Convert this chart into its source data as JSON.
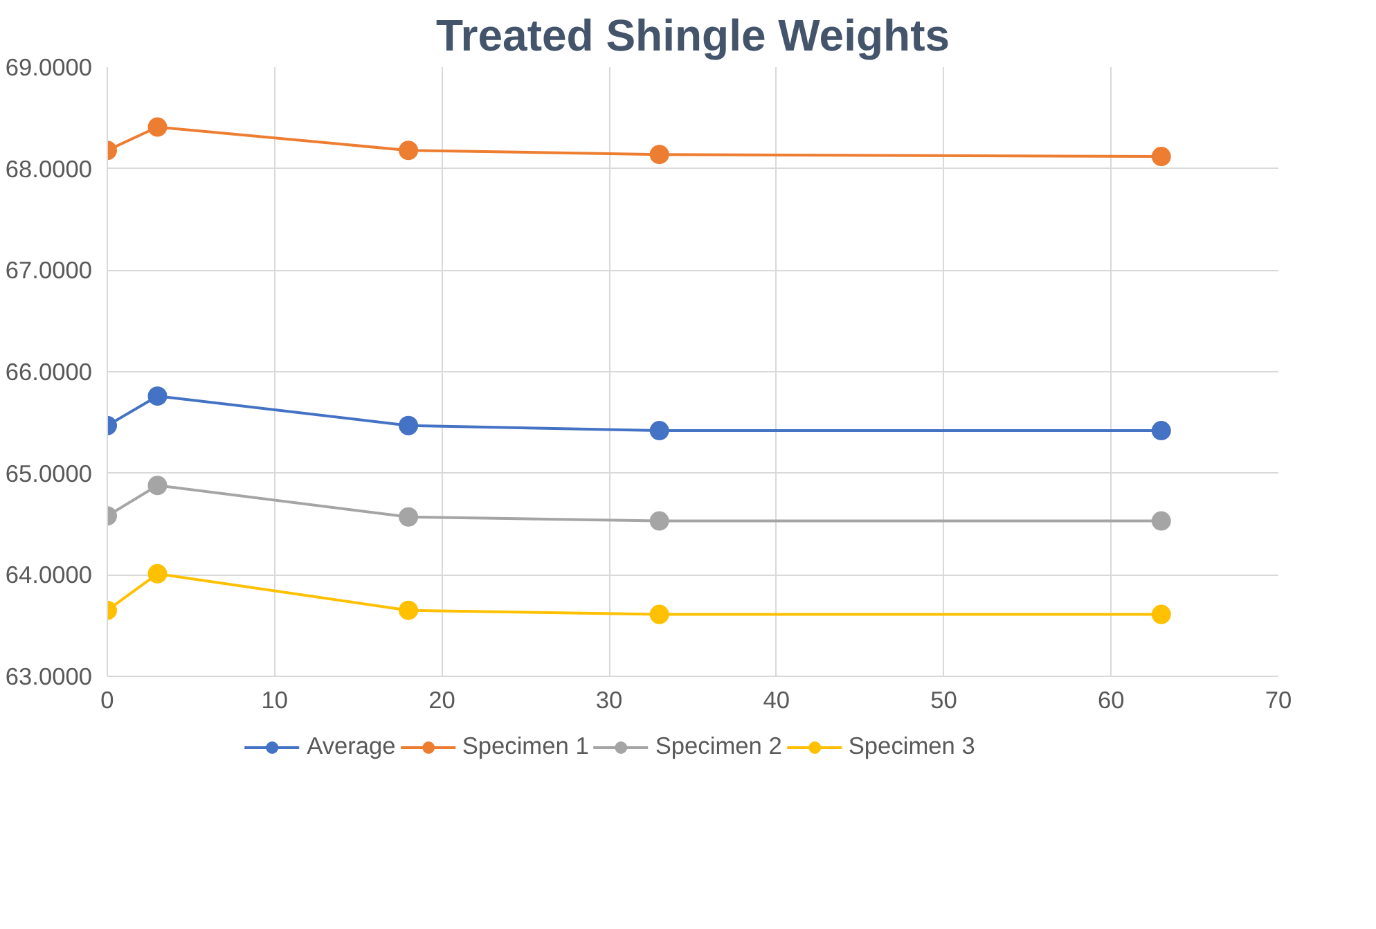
{
  "chart_data": {
    "type": "line",
    "title": "Treated Shingle Weights",
    "x": [
      0,
      3,
      18,
      33,
      63
    ],
    "series": [
      {
        "name": "Average",
        "color": "#4472c4",
        "values": [
          65.47,
          65.76,
          65.47,
          65.42,
          65.42
        ]
      },
      {
        "name": "Specimen 1",
        "color": "#ed7d31",
        "values": [
          68.18,
          68.41,
          68.18,
          68.14,
          68.12
        ]
      },
      {
        "name": "Specimen 2",
        "color": "#a5a5a5",
        "values": [
          64.58,
          64.88,
          64.57,
          64.53,
          64.53
        ]
      },
      {
        "name": "Specimen 3",
        "color": "#ffc000",
        "values": [
          63.65,
          64.01,
          63.65,
          63.61,
          63.61
        ]
      }
    ],
    "xlim": [
      0,
      70
    ],
    "xticks": [
      0,
      10,
      20,
      30,
      40,
      50,
      60,
      70
    ],
    "ylim": [
      63,
      69
    ],
    "yticks": [
      {
        "value": 63,
        "label": "63.0000"
      },
      {
        "value": 64,
        "label": "64.0000"
      },
      {
        "value": 65,
        "label": "65.0000"
      },
      {
        "value": 66,
        "label": "66.0000"
      },
      {
        "value": 67,
        "label": "67.0000"
      },
      {
        "value": 68,
        "label": "68.0000"
      },
      {
        "value": 69,
        "label": "69.0000"
      }
    ],
    "grid": true,
    "legend": "bottom",
    "marker": "circle",
    "line_style": "solid"
  }
}
